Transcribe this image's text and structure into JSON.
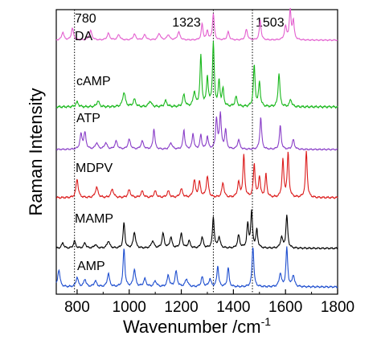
{
  "chart_data": {
    "type": "line",
    "xlabel": "Wavenumber /cm",
    "xlabel_sup": "-1",
    "ylabel": "Raman Intensity",
    "xlim": [
      720,
      1800
    ],
    "xticks": [
      800,
      1000,
      1200,
      1400,
      1600,
      1800
    ],
    "y_ticks_shown": false,
    "grid": false,
    "reference_lines": [
      780,
      1323,
      1503
    ],
    "reference_labels": [
      "780",
      "1323",
      "1503"
    ],
    "series": [
      {
        "name": "DA",
        "color": "#e35fcf",
        "baseline": 0,
        "peaks": [
          [
            745,
            0.3,
            5
          ],
          [
            782,
            0.45,
            5
          ],
          [
            852,
            0.35,
            6
          ],
          [
            920,
            0.25,
            6
          ],
          [
            960,
            0.2,
            6
          ],
          [
            1020,
            0.22,
            6
          ],
          [
            1060,
            0.2,
            6
          ],
          [
            1115,
            0.25,
            6
          ],
          [
            1150,
            0.2,
            6
          ],
          [
            1190,
            0.3,
            6
          ],
          [
            1280,
            0.6,
            4
          ],
          [
            1300,
            0.35,
            4
          ],
          [
            1323,
            1.0,
            4
          ],
          [
            1380,
            0.3,
            5
          ],
          [
            1450,
            0.4,
            5
          ],
          [
            1503,
            0.75,
            4
          ],
          [
            1600,
            0.5,
            5
          ],
          [
            1618,
            1.1,
            4
          ],
          [
            1630,
            0.7,
            4
          ]
        ]
      },
      {
        "name": "cAMP",
        "color": "#19b81c",
        "baseline": 0,
        "peaks": [
          [
            800,
            0.1,
            6
          ],
          [
            880,
            0.12,
            6
          ],
          [
            980,
            0.3,
            6
          ],
          [
            1020,
            0.15,
            6
          ],
          [
            1080,
            0.12,
            6
          ],
          [
            1140,
            0.12,
            6
          ],
          [
            1210,
            0.25,
            5
          ],
          [
            1250,
            0.3,
            5
          ],
          [
            1275,
            1.05,
            4
          ],
          [
            1300,
            0.6,
            4
          ],
          [
            1323,
            1.3,
            4
          ],
          [
            1345,
            0.5,
            4
          ],
          [
            1360,
            0.35,
            4
          ],
          [
            1410,
            0.2,
            5
          ],
          [
            1480,
            0.85,
            4
          ],
          [
            1500,
            0.5,
            4
          ],
          [
            1575,
            0.7,
            4
          ],
          [
            1620,
            0.15,
            5
          ]
        ]
      },
      {
        "name": "ATP",
        "color": "#8a3fc8",
        "baseline": 0,
        "peaks": [
          [
            815,
            0.45,
            5
          ],
          [
            830,
            0.5,
            5
          ],
          [
            875,
            0.2,
            6
          ],
          [
            910,
            0.2,
            6
          ],
          [
            950,
            0.25,
            6
          ],
          [
            1000,
            0.3,
            6
          ],
          [
            1050,
            0.25,
            6
          ],
          [
            1095,
            0.65,
            4
          ],
          [
            1160,
            0.2,
            6
          ],
          [
            1210,
            0.6,
            4
          ],
          [
            1245,
            0.5,
            4
          ],
          [
            1275,
            0.45,
            4
          ],
          [
            1300,
            0.4,
            4
          ],
          [
            1335,
            0.95,
            4
          ],
          [
            1350,
            1.1,
            4
          ],
          [
            1370,
            0.6,
            4
          ],
          [
            1420,
            0.3,
            5
          ],
          [
            1505,
            1.0,
            4
          ],
          [
            1580,
            0.75,
            4
          ],
          [
            1630,
            0.3,
            5
          ]
        ]
      },
      {
        "name": "MDPV",
        "color": "#dc1c1c",
        "baseline": 0,
        "peaks": [
          [
            800,
            0.45,
            5
          ],
          [
            875,
            0.25,
            6
          ],
          [
            935,
            0.2,
            6
          ],
          [
            1000,
            0.18,
            6
          ],
          [
            1050,
            0.15,
            6
          ],
          [
            1100,
            0.15,
            6
          ],
          [
            1150,
            0.15,
            6
          ],
          [
            1200,
            0.2,
            6
          ],
          [
            1250,
            0.4,
            5
          ],
          [
            1270,
            0.35,
            5
          ],
          [
            1300,
            0.5,
            5
          ],
          [
            1360,
            0.35,
            5
          ],
          [
            1420,
            0.35,
            5
          ],
          [
            1440,
            1.0,
            4
          ],
          [
            1480,
            0.8,
            4
          ],
          [
            1500,
            0.5,
            4
          ],
          [
            1525,
            0.55,
            4
          ],
          [
            1590,
            0.9,
            4
          ],
          [
            1610,
            1.05,
            4
          ],
          [
            1680,
            1.1,
            4
          ]
        ]
      },
      {
        "name": "MAMP",
        "color": "#000000",
        "baseline": 0,
        "peaks": [
          [
            745,
            0.15,
            5
          ],
          [
            790,
            0.2,
            5
          ],
          [
            830,
            0.15,
            5
          ],
          [
            870,
            0.1,
            6
          ],
          [
            920,
            0.2,
            6
          ],
          [
            980,
            0.7,
            4
          ],
          [
            1020,
            0.45,
            5
          ],
          [
            1090,
            0.2,
            6
          ],
          [
            1130,
            0.4,
            5
          ],
          [
            1160,
            0.3,
            5
          ],
          [
            1200,
            0.4,
            5
          ],
          [
            1230,
            0.2,
            5
          ],
          [
            1280,
            0.3,
            5
          ],
          [
            1323,
            0.85,
            4
          ],
          [
            1345,
            0.3,
            5
          ],
          [
            1420,
            0.35,
            5
          ],
          [
            1455,
            0.65,
            4
          ],
          [
            1470,
            1.0,
            4
          ],
          [
            1490,
            0.5,
            4
          ],
          [
            1585,
            0.3,
            5
          ],
          [
            1605,
            0.9,
            4
          ]
        ]
      },
      {
        "name": "AMP",
        "color": "#1f4fcf",
        "baseline": 0,
        "peaks": [
          [
            730,
            0.45,
            5
          ],
          [
            800,
            0.25,
            5
          ],
          [
            830,
            0.2,
            5
          ],
          [
            870,
            0.15,
            6
          ],
          [
            920,
            0.35,
            5
          ],
          [
            980,
            1.0,
            4
          ],
          [
            1020,
            0.45,
            5
          ],
          [
            1060,
            0.2,
            6
          ],
          [
            1100,
            0.15,
            6
          ],
          [
            1150,
            0.3,
            5
          ],
          [
            1180,
            0.4,
            5
          ],
          [
            1220,
            0.2,
            6
          ],
          [
            1280,
            0.25,
            5
          ],
          [
            1310,
            0.2,
            5
          ],
          [
            1340,
            0.55,
            4
          ],
          [
            1380,
            0.5,
            4
          ],
          [
            1475,
            1.05,
            4
          ],
          [
            1580,
            0.35,
            5
          ],
          [
            1605,
            1.0,
            4
          ],
          [
            1630,
            0.3,
            5
          ]
        ]
      }
    ]
  }
}
